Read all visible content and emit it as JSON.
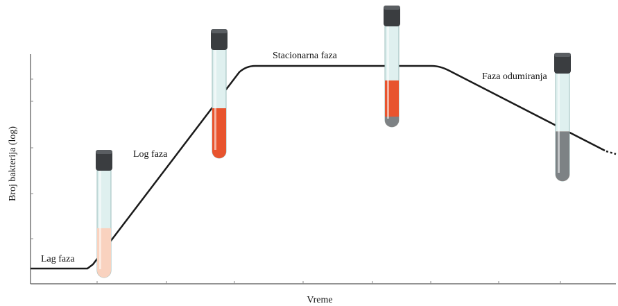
{
  "labels": {
    "lag_phase": "Lag faza",
    "log_phase": "Log faza",
    "stationary_phase": "Stacionarna faza",
    "death_phase": "Faza odumiranja"
  },
  "axes": {
    "x_label": "Vreme",
    "y_label": "Broj bakterija (log)"
  },
  "colors": {
    "curve": "#1a1a1a",
    "axis": "#555555",
    "tube_glass": "#dff0ef",
    "tube_cap": "#3a3d40",
    "culture_light": "#f9d2bf",
    "culture_dense": "#e8542e",
    "sediment": "#7d8285"
  },
  "tubes": [
    {
      "phase": "lag",
      "culture_fill": 0.45,
      "culture_color": "culture_light",
      "sediment_fill": 0
    },
    {
      "phase": "log",
      "culture_fill": 0.45,
      "culture_color": "culture_dense",
      "sediment_fill": 0
    },
    {
      "phase": "stationary",
      "culture_fill": 0.45,
      "culture_color": "culture_dense",
      "sediment_fill": 0.1
    },
    {
      "phase": "death",
      "culture_fill": 0.45,
      "culture_color": "culture_dense",
      "sediment_fill": 0.45
    }
  ]
}
